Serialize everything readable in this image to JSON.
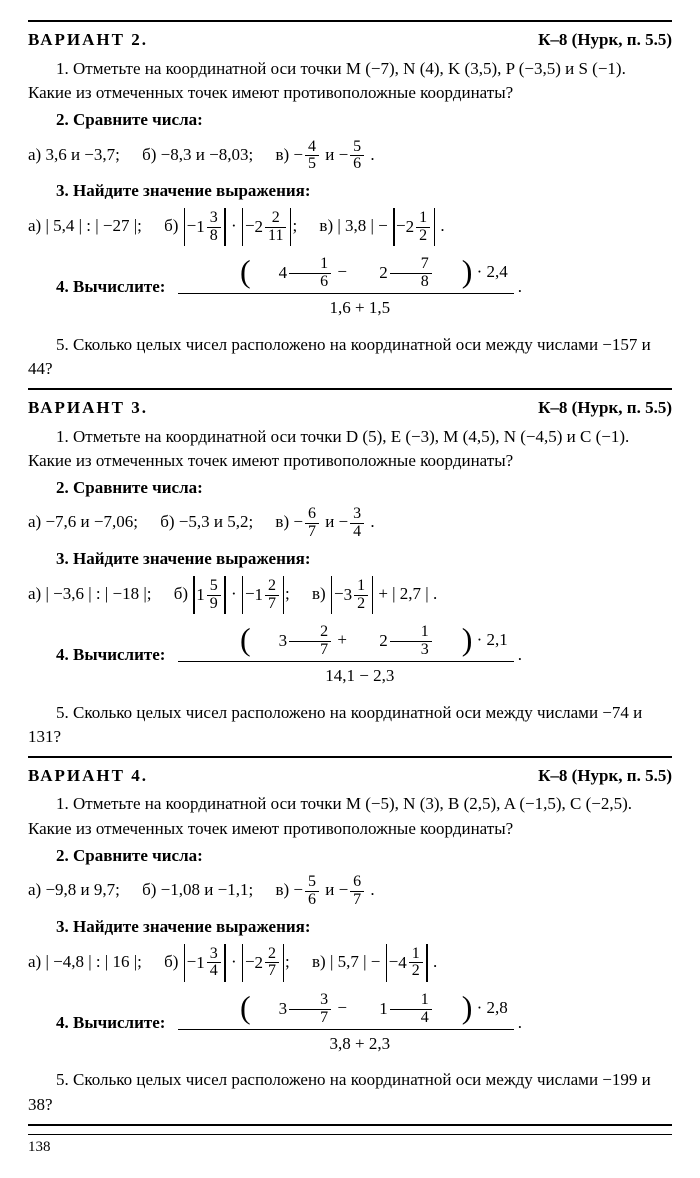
{
  "pageNumber": "138",
  "variants": [
    {
      "title": "ВАРИАНТ 2.",
      "ref": "К–8 (Нурк, п. 5.5)",
      "task1": "1. Отметьте на координатной оси точки M (−7), N (4), K (3,5), P (−3,5) и S (−1). Какие из отмеченных точек имеют противоположные координаты?",
      "task2_head": "2. Сравните числа:",
      "task2_a": "а) 3,6 и −3,7;",
      "task2_b": "б) −8,3 и −8,03;",
      "task2_c_pre": "в) −",
      "task2_c_f1n": "4",
      "task2_c_f1d": "5",
      "task2_c_mid": " и −",
      "task2_c_f2n": "5",
      "task2_c_f2d": "6",
      "task3_head": "3. Найдите значение выражения:",
      "task3_a": "а) | 5,4 | : | −27 |;",
      "task3_b_pre": "б) ",
      "task3_b_m1w": "1",
      "task3_b_m1n": "3",
      "task3_b_m1d": "8",
      "task3_b_m2w": "2",
      "task3_b_m2n": "2",
      "task3_b_m2d": "11",
      "task3_c_pre": "в) | 3,8 | − ",
      "task3_c_m1w": "2",
      "task3_c_m1n": "1",
      "task3_c_m1d": "2",
      "task4_head": "4. Вычислите:",
      "task4_m1w": "4",
      "task4_m1n": "1",
      "task4_m1d": "6",
      "task4_m2w": "2",
      "task4_m2n": "7",
      "task4_m2d": "8",
      "task4_mult": "· 2,4",
      "task4_den": "1,6 + 1,5",
      "task5": "5. Сколько целых чисел расположено на координатной оси между числами −157 и 44?"
    },
    {
      "title": "ВАРИАНТ 3.",
      "ref": "К–8 (Нурк, п. 5.5)",
      "task1": "1. Отметьте на координатной оси точки D (5), E (−3), M (4,5), N (−4,5) и C (−1). Какие из отмеченных точек имеют противоположные координаты?",
      "task2_head": "2. Сравните числа:",
      "task2_a": "а) −7,6 и −7,06;",
      "task2_b": "б) −5,3 и 5,2;",
      "task2_c_pre": "в) −",
      "task2_c_f1n": "6",
      "task2_c_f1d": "7",
      "task2_c_mid": " и −",
      "task2_c_f2n": "3",
      "task2_c_f2d": "4",
      "task3_head": "3. Найдите значение выражения:",
      "task3_a": "а) | −3,6 | : | −18 |;",
      "task3_b_pre": "б) ",
      "task3_b_m1w": "1",
      "task3_b_m1n": "5",
      "task3_b_m1d": "9",
      "task3_b_m2w": "1",
      "task3_b_m2n": "2",
      "task3_b_m2d": "7",
      "task3_c_pre": "в) ",
      "task3_c_m1w": "3",
      "task3_c_m1n": "1",
      "task3_c_m1d": "2",
      "task3_c_post": " + | 2,7 |",
      "task3_c_neg": "−",
      "task4_head": "4. Вычислите:",
      "task4_m1w": "3",
      "task4_m1n": "2",
      "task4_m1d": "7",
      "task4_op": "+",
      "task4_m2w": "2",
      "task4_m2n": "1",
      "task4_m2d": "3",
      "task4_mult": "· 2,1",
      "task4_den": "14,1 − 2,3",
      "task5": "5. Сколько целых чисел расположено на координатной оси между числами −74 и 131?"
    },
    {
      "title": "ВАРИАНТ 4.",
      "ref": "К–8 (Нурк, п. 5.5)",
      "task1": "1. Отметьте на координатной оси точки M (−5), N (3), B (2,5), A (−1,5), C (−2,5). Какие из отмеченных точек имеют противоположные координаты?",
      "task2_head": "2. Сравните числа:",
      "task2_a": "а) −9,8 и 9,7;",
      "task2_b": "б) −1,08 и −1,1;",
      "task2_c_pre": "в) −",
      "task2_c_f1n": "5",
      "task2_c_f1d": "6",
      "task2_c_mid": " и −",
      "task2_c_f2n": "6",
      "task2_c_f2d": "7",
      "task3_head": "3. Найдите значение выражения:",
      "task3_a": "а) | −4,8 | : | 16 |;",
      "task3_b_pre": "б) ",
      "task3_b_m1w": "1",
      "task3_b_m1n": "3",
      "task3_b_m1d": "4",
      "task3_b_m2w": "2",
      "task3_b_m2n": "2",
      "task3_b_m2d": "7",
      "task3_c_pre": "в) | 5,7 | − ",
      "task3_c_m1w": "4",
      "task3_c_m1n": "1",
      "task3_c_m1d": "2",
      "task3_c_neg": "−",
      "task4_head": "4. Вычислите:",
      "task4_m1w": "3",
      "task4_m1n": "3",
      "task4_m1d": "7",
      "task4_op": "−",
      "task4_m2w": "1",
      "task4_m2n": "1",
      "task4_m2d": "4",
      "task4_mult": "· 2,8",
      "task4_den": "3,8 + 2,3",
      "task5": "5. Сколько целых чисел расположено на координатной оси между числами −199 и 38?"
    }
  ]
}
